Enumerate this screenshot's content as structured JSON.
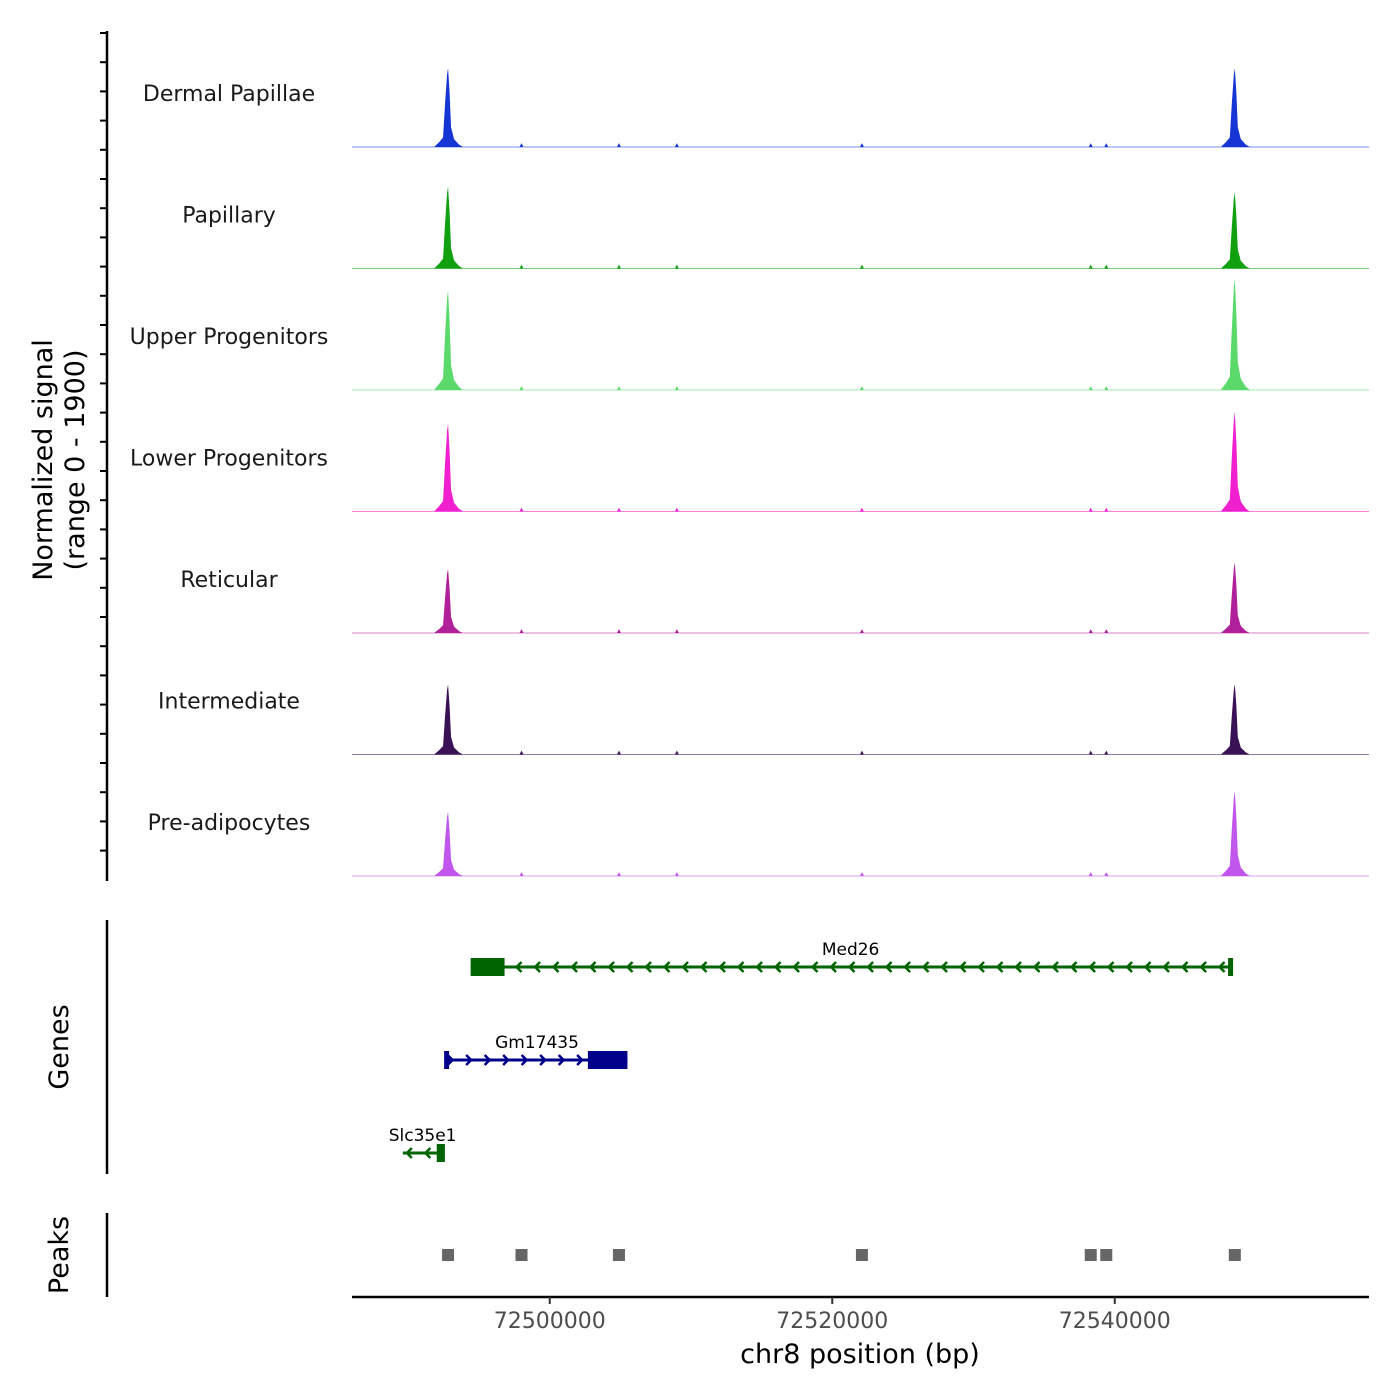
{
  "chart_data": {
    "type": "genome-browser",
    "x_axis": {
      "label": "chr8 position (bp)",
      "range": [
        72486000,
        72558000
      ],
      "ticks": [
        72500000,
        72520000,
        72540000
      ],
      "tick_labels": [
        "72500000",
        "72520000",
        "72540000"
      ]
    },
    "coverage": {
      "ylabel_line1": "Normalized signal",
      "ylabel_line2": "(range 0 - 1900)",
      "y_range": [
        0,
        1900
      ],
      "peak_positions": [
        72492800,
        72548500
      ],
      "tracks": [
        {
          "name": "Dermal Papillae",
          "color": "#1535d4",
          "peak_heights": [
            1350,
            1350
          ]
        },
        {
          "name": "Papillary",
          "color": "#10a010",
          "peak_heights": [
            1400,
            1300
          ]
        },
        {
          "name": "Upper Progenitors",
          "color": "#5cd96b",
          "peak_heights": [
            1700,
            1900
          ]
        },
        {
          "name": "Lower Progenitors",
          "color": "#f020d0",
          "peak_heights": [
            1500,
            1700
          ]
        },
        {
          "name": "Reticular",
          "color": "#b0209a",
          "peak_heights": [
            1100,
            1200
          ]
        },
        {
          "name": "Intermediate",
          "color": "#3a1155",
          "peak_heights": [
            1200,
            1200
          ]
        },
        {
          "name": "Pre-adipocytes",
          "color": "#c056ec",
          "peak_heights": [
            1100,
            1450
          ]
        }
      ]
    },
    "genes": {
      "ylabel": "Genes",
      "items": [
        {
          "name": "Med26",
          "strand": "-",
          "start": 72494400,
          "end": 72548200,
          "exon_start": 72494400,
          "exon_end": 72496800,
          "color": "#006400"
        },
        {
          "name": "Gm17435",
          "strand": "+",
          "start": 72492700,
          "end": 72505500,
          "exon_start": 72502700,
          "exon_end": 72505500,
          "color": "#00008b"
        },
        {
          "name": "Slc35e1",
          "strand": "-",
          "start": 72489600,
          "end": 72492400,
          "exon_start": 72492000,
          "exon_end": 72492400,
          "color": "#006400"
        }
      ]
    },
    "peaks": {
      "ylabel": "Peaks",
      "color": "#666666",
      "positions": [
        72492800,
        72498000,
        72504900,
        72522100,
        72538300,
        72539400,
        72548500
      ]
    }
  }
}
